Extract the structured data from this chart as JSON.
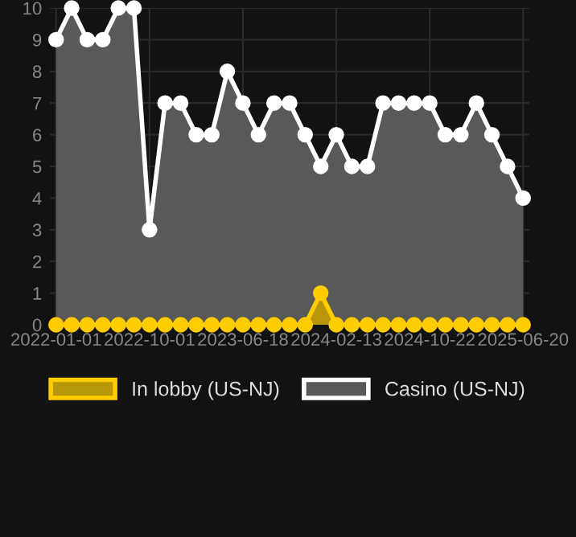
{
  "chart_data": {
    "type": "area",
    "categories": [
      "2022-01-01",
      null,
      null,
      null,
      null,
      null,
      "2022-10-01",
      null,
      null,
      null,
      null,
      null,
      "2023-06-18",
      null,
      null,
      null,
      null,
      null,
      "2024-02-13",
      null,
      null,
      null,
      null,
      null,
      "2024-10-22",
      null,
      null,
      null,
      null,
      null,
      "2025-06-20"
    ],
    "series": [
      {
        "name": "In lobby (US-NJ)",
        "color": "#ffcc00",
        "values": [
          0,
          0,
          0,
          0,
          0,
          0,
          0,
          0,
          0,
          0,
          0,
          0,
          0,
          0,
          0,
          0,
          0,
          1,
          0,
          0,
          0,
          0,
          0,
          0,
          0,
          0,
          0,
          0,
          0,
          0,
          0
        ]
      },
      {
        "name": "Casino (US-NJ)",
        "color": "#ffffff",
        "values": [
          9,
          10,
          9,
          9,
          10,
          10,
          3,
          7,
          7,
          6,
          6,
          8,
          7,
          6,
          7,
          7,
          6,
          5,
          6,
          5,
          5,
          7,
          7,
          7,
          7,
          6,
          6,
          7,
          6,
          5,
          4
        ]
      }
    ],
    "ylim": [
      0,
      10
    ],
    "yticks": [
      0,
      1,
      2,
      3,
      4,
      5,
      6,
      7,
      8,
      9,
      10
    ],
    "grid": true,
    "legend": "bottom",
    "marker": "circle"
  }
}
